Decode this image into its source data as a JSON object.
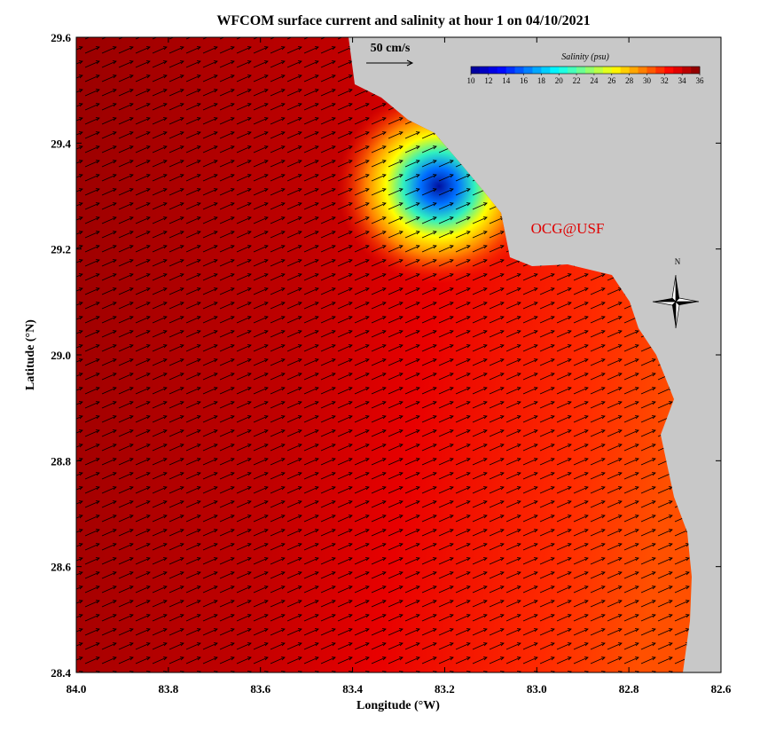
{
  "map": {
    "title": "WFCOM surface current and salinity at hour 1 on 04/10/2021",
    "x_label": "Longitude (°W)",
    "y_label": "Latitude (°N)",
    "xlim": [
      84.0,
      82.6
    ],
    "ylim": [
      28.4,
      29.6
    ],
    "xticks": [
      {
        "value": 84,
        "label": "84.0"
      },
      83.8,
      83.6,
      83.4,
      83.2,
      {
        "value": 83,
        "label": "83.0"
      },
      82.8,
      82.6
    ],
    "yticks": [
      28.4,
      28.6,
      28.8,
      {
        "value": 29,
        "label": "29.0"
      },
      29.2,
      29.4,
      29.6
    ],
    "scale_arrow_label": "50 cm/s",
    "credit": "OCG@USF",
    "compass_label": "N",
    "colorbar": {
      "title": "Salinity (psu)",
      "range": [
        10,
        36
      ],
      "ticks": [
        10,
        12,
        14,
        16,
        18,
        20,
        22,
        24,
        26,
        28,
        30,
        32,
        34,
        36
      ],
      "colors": [
        "#00008f",
        "#0000ff",
        "#0080ff",
        "#00ffff",
        "#80ff80",
        "#ffff00",
        "#ff8000",
        "#ff0000",
        "#800000"
      ]
    }
  }
}
